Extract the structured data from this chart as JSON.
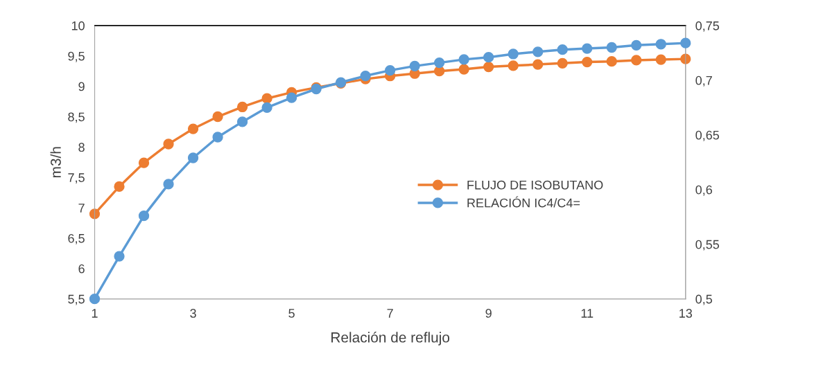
{
  "chart_data": {
    "type": "line",
    "xlabel": "Relación de reflujo",
    "ylabel": "m3/h",
    "x": [
      1,
      1.5,
      2,
      2.5,
      3,
      3.5,
      4,
      4.5,
      5,
      5.5,
      6,
      6.5,
      7,
      7.5,
      8,
      8.5,
      9,
      9.5,
      10,
      10.5,
      11,
      11.5,
      12,
      12.5,
      13
    ],
    "series": [
      {
        "name": "FLUJO DE ISOBUTANO",
        "color": "#ed7d31",
        "values": [
          6.9,
          7.35,
          7.74,
          8.05,
          8.3,
          8.5,
          8.66,
          8.8,
          8.9,
          8.98,
          9.05,
          9.12,
          9.17,
          9.21,
          9.25,
          9.28,
          9.32,
          9.34,
          9.36,
          9.38,
          9.4,
          9.41,
          9.43,
          9.44,
          9.45
        ]
      },
      {
        "name": "RELACIÓN IC4/C4=",
        "color": "#5b9bd5",
        "axis": "y2",
        "values": [
          0.5,
          0.539,
          0.576,
          0.605,
          0.629,
          0.648,
          0.662,
          0.675,
          0.684,
          0.692,
          0.698,
          0.704,
          0.709,
          0.713,
          0.716,
          0.719,
          0.721,
          0.724,
          0.726,
          0.728,
          0.729,
          0.73,
          0.732,
          0.733,
          0.734
        ]
      }
    ],
    "xlim": [
      1,
      13
    ],
    "xticks": [
      1,
      3,
      5,
      7,
      9,
      11,
      13
    ],
    "ylim": [
      5.5,
      10
    ],
    "yticks": [
      {
        "value": 5.5,
        "label": "5,5"
      },
      6,
      {
        "value": 6.5,
        "label": "6,5"
      },
      7,
      {
        "value": 7.5,
        "label": "7,5"
      },
      8,
      {
        "value": 8.5,
        "label": "8,5"
      },
      9,
      {
        "value": 9.5,
        "label": "9,5"
      },
      10
    ],
    "y2lim": [
      0.5,
      0.75
    ],
    "y2ticks": [
      {
        "value": 0.5,
        "label": "0,5"
      },
      {
        "value": 0.55,
        "label": "0,55"
      },
      {
        "value": 0.6,
        "label": "0,6"
      },
      {
        "value": 0.65,
        "label": "0,65"
      },
      {
        "value": 0.7,
        "label": "0,7"
      },
      {
        "value": 0.75,
        "label": "0,75"
      }
    ],
    "marker": "circle",
    "line_style": "solid",
    "grid": false,
    "legend": "center right"
  }
}
